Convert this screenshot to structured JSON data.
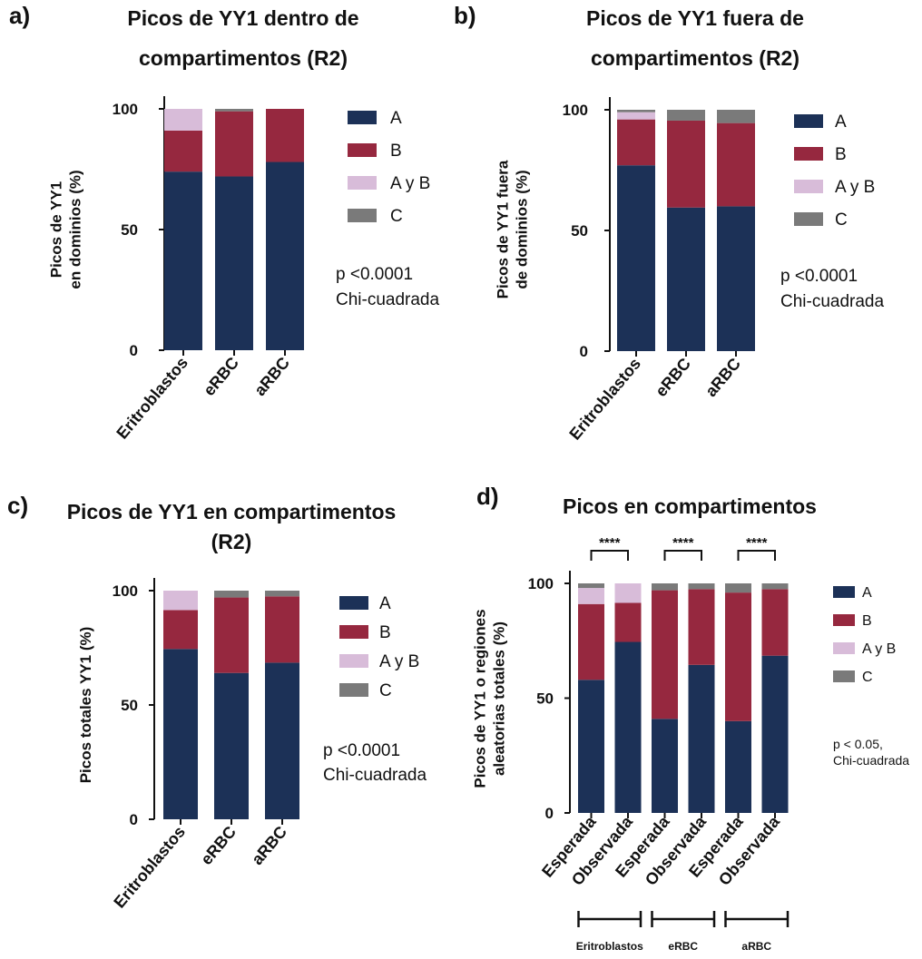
{
  "colors": {
    "A": "#1c3157",
    "B": "#96283f",
    "AyB": "#d8bcd9",
    "C": "#7a7a7a"
  },
  "chart_data": [
    {
      "panel": "a)",
      "type": "bar",
      "stacked": true,
      "title": [
        "Picos de YY1 dentro de",
        "compartimentos (R2)"
      ],
      "ylabel": [
        "Picos de YY1",
        "en dominios (%)"
      ],
      "ylim": [
        0,
        100
      ],
      "yticks": [
        0,
        50,
        100
      ],
      "categories": [
        "Eritroblastos",
        "eRBC",
        "aRBC"
      ],
      "series": [
        {
          "name": "A",
          "values": [
            74,
            72,
            78
          ]
        },
        {
          "name": "B",
          "values": [
            17,
            27,
            22
          ]
        },
        {
          "name": "A y B",
          "values": [
            9,
            0,
            0
          ]
        },
        {
          "name": "C",
          "values": [
            0,
            1,
            0
          ]
        }
      ],
      "annotation": [
        "p <0.0001",
        "Chi-cuadrada"
      ],
      "legend_position": "right"
    },
    {
      "panel": "b)",
      "type": "bar",
      "stacked": true,
      "title": [
        "Picos de YY1 fuera de",
        "compartimentos (R2)"
      ],
      "ylabel": [
        "Picos de YY1 fuera",
        "de dominios  (%)"
      ],
      "ylim": [
        0,
        100
      ],
      "yticks": [
        0,
        50,
        100
      ],
      "categories": [
        "Eritroblastos",
        "eRBC",
        "aRBC"
      ],
      "series": [
        {
          "name": "A",
          "values": [
            77,
            59.5,
            60
          ]
        },
        {
          "name": "B",
          "values": [
            19,
            36,
            34.5
          ]
        },
        {
          "name": "A y B",
          "values": [
            3,
            0,
            0
          ]
        },
        {
          "name": "C",
          "values": [
            1,
            4.5,
            5.5
          ]
        }
      ],
      "annotation": [
        "p <0.0001",
        "Chi-cuadrada"
      ],
      "legend_position": "right"
    },
    {
      "panel": "c)",
      "type": "bar",
      "stacked": true,
      "title": [
        "Picos de YY1 en compartimentos",
        "(R2)"
      ],
      "ylabel": [
        "Picos totales YY1 (%)"
      ],
      "ylim": [
        0,
        100
      ],
      "yticks": [
        0,
        50,
        100
      ],
      "categories": [
        "Eritroblastos",
        "eRBC",
        "aRBC"
      ],
      "series": [
        {
          "name": "A",
          "values": [
            74.5,
            64,
            68.5
          ]
        },
        {
          "name": "B",
          "values": [
            17,
            33,
            29
          ]
        },
        {
          "name": "A y B",
          "values": [
            8.5,
            0,
            0
          ]
        },
        {
          "name": "C",
          "values": [
            0,
            3,
            2.5
          ]
        }
      ],
      "annotation": [
        "p <0.0001",
        "Chi-cuadrada"
      ],
      "legend_position": "right"
    },
    {
      "panel": "d)",
      "type": "bar",
      "stacked": true,
      "title": [
        "Picos en compartimentos"
      ],
      "ylabel": [
        "Picos de YY1 o regiones",
        "aleatorias totales (%)"
      ],
      "ylim": [
        0,
        100
      ],
      "yticks": [
        0,
        50,
        100
      ],
      "categories": [
        "Esperada",
        "Observada",
        "Esperada",
        "Observada",
        "Esperada",
        "Observada"
      ],
      "groups": [
        "Eritroblastos",
        "eRBC",
        "aRBC"
      ],
      "significance": [
        "****",
        "****",
        "****"
      ],
      "series": [
        {
          "name": "A",
          "values": [
            58,
            74.5,
            41,
            64.5,
            40,
            68.5
          ]
        },
        {
          "name": "B",
          "values": [
            33,
            17,
            56,
            33,
            56,
            29
          ]
        },
        {
          "name": "A y B",
          "values": [
            7,
            8.5,
            0,
            0,
            0,
            0
          ]
        },
        {
          "name": "C",
          "values": [
            2,
            0,
            3,
            2.5,
            4,
            2.5
          ]
        }
      ],
      "annotation": [
        "p < 0.05,",
        "Chi-cuadrada"
      ],
      "legend_position": "right"
    }
  ]
}
